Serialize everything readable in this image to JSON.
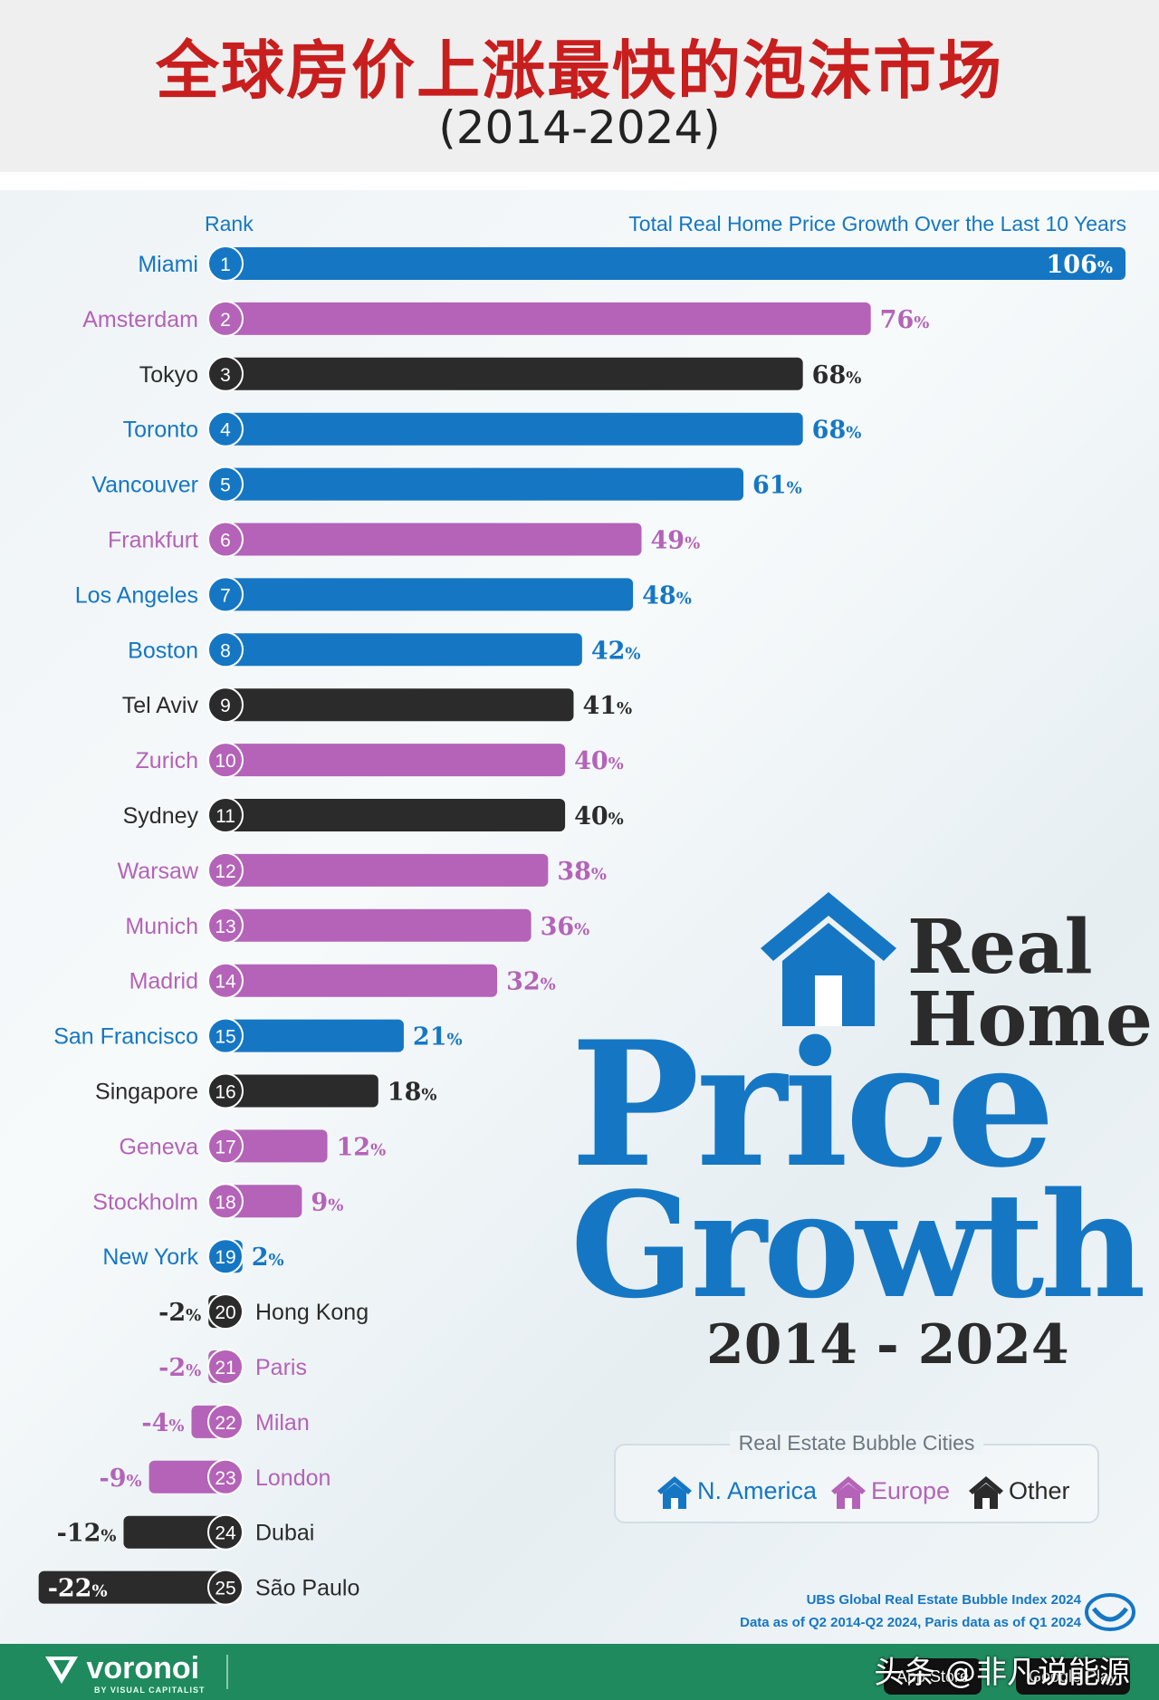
{
  "header": {
    "title": "全球房价上涨最快的泡沫市场",
    "subtitle": "(2014-2024)"
  },
  "chart_headers": {
    "rank": "Rank",
    "total": "Total Real Home Price Growth Over the Last 10 Years"
  },
  "colors": {
    "n_america": "#1577c4",
    "europe": "#b463b8",
    "other": "#2b2b2b"
  },
  "chart_data": {
    "type": "bar",
    "orientation": "horizontal",
    "title": "Real Home Price Growth 2014 - 2024",
    "value_suffix": "%",
    "rows": [
      {
        "rank": 1,
        "city": "Miami",
        "value": 106,
        "region": "N. America"
      },
      {
        "rank": 2,
        "city": "Amsterdam",
        "value": 76,
        "region": "Europe"
      },
      {
        "rank": 3,
        "city": "Tokyo",
        "value": 68,
        "region": "Other"
      },
      {
        "rank": 4,
        "city": "Toronto",
        "value": 68,
        "region": "N. America"
      },
      {
        "rank": 5,
        "city": "Vancouver",
        "value": 61,
        "region": "N. America"
      },
      {
        "rank": 6,
        "city": "Frankfurt",
        "value": 49,
        "region": "Europe"
      },
      {
        "rank": 7,
        "city": "Los Angeles",
        "value": 48,
        "region": "N. America"
      },
      {
        "rank": 8,
        "city": "Boston",
        "value": 42,
        "region": "N. America"
      },
      {
        "rank": 9,
        "city": "Tel Aviv",
        "value": 41,
        "region": "Other"
      },
      {
        "rank": 10,
        "city": "Zurich",
        "value": 40,
        "region": "Europe"
      },
      {
        "rank": 11,
        "city": "Sydney",
        "value": 40,
        "region": "Other"
      },
      {
        "rank": 12,
        "city": "Warsaw",
        "value": 38,
        "region": "Europe"
      },
      {
        "rank": 13,
        "city": "Munich",
        "value": 36,
        "region": "Europe"
      },
      {
        "rank": 14,
        "city": "Madrid",
        "value": 32,
        "region": "Europe"
      },
      {
        "rank": 15,
        "city": "San Francisco",
        "value": 21,
        "region": "N. America"
      },
      {
        "rank": 16,
        "city": "Singapore",
        "value": 18,
        "region": "Other"
      },
      {
        "rank": 17,
        "city": "Geneva",
        "value": 12,
        "region": "Europe"
      },
      {
        "rank": 18,
        "city": "Stockholm",
        "value": 9,
        "region": "Europe"
      },
      {
        "rank": 19,
        "city": "New York",
        "value": 2,
        "region": "N. America"
      },
      {
        "rank": 20,
        "city": "Hong Kong",
        "value": -2,
        "region": "Other"
      },
      {
        "rank": 21,
        "city": "Paris",
        "value": -2,
        "region": "Europe"
      },
      {
        "rank": 22,
        "city": "Milan",
        "value": -4,
        "region": "Europe"
      },
      {
        "rank": 23,
        "city": "London",
        "value": -9,
        "region": "Europe"
      },
      {
        "rank": 24,
        "city": "Dubai",
        "value": -12,
        "region": "Other"
      },
      {
        "rank": 25,
        "city": "São Paulo",
        "value": -22,
        "region": "Other"
      }
    ]
  },
  "brand": {
    "real": "Real",
    "home": "Home",
    "price": "Price",
    "growth": "Growth",
    "years": "2014 - 2024"
  },
  "legend": {
    "title": "Real Estate Bubble Cities",
    "items": [
      {
        "label": "N. America",
        "icon": "house-icon"
      },
      {
        "label": "Europe",
        "icon": "house-icon"
      },
      {
        "label": "Other",
        "icon": "house-icon"
      }
    ]
  },
  "source": {
    "line1": "UBS Global Real Estate Bubble Index 2024",
    "line2": "Data as of Q2 2014-Q2 2024, Paris data as of Q1 2024"
  },
  "footer": {
    "logo": "voronoi",
    "logo_sub": "BY VISUAL CAPITALIST",
    "app_store": "App Store",
    "google_play": "Google Play",
    "watermark": "头条 @非凡说能源"
  }
}
